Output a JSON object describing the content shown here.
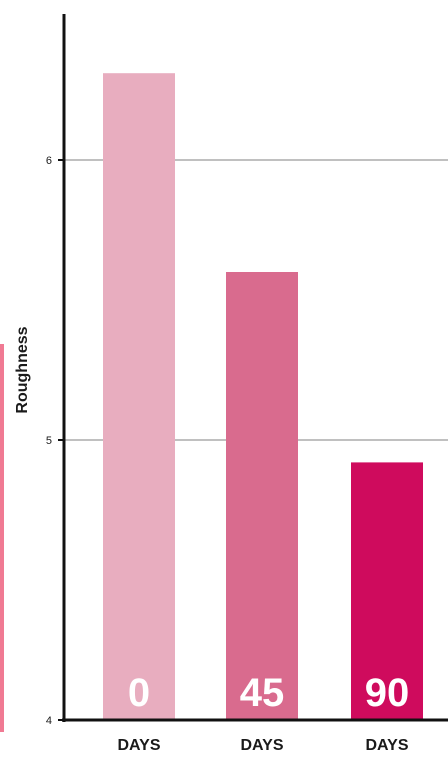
{
  "chart_data": {
    "type": "bar",
    "categories": [
      "0",
      "45",
      "90"
    ],
    "category_units": [
      "DAYS",
      "DAYS",
      "DAYS"
    ],
    "values": [
      6.31,
      5.6,
      4.92
    ],
    "bar_colors": [
      "#e8adbf",
      "#d96b8e",
      "#cf0b5d"
    ],
    "ylabel": "Roughness",
    "xlabel": "",
    "title": "",
    "ylim": [
      4,
      6.5
    ],
    "yticks": [
      4,
      5,
      6
    ],
    "ytick_labels": [
      "4",
      "5",
      "6"
    ],
    "grid": true,
    "gridlines_at": [
      5,
      6
    ],
    "grid_color": "#c0c0c0",
    "axis_color": "#111111",
    "legend": "none"
  },
  "colors": {
    "accent_strip": "#f07a93",
    "bar_label_text": "#ffffff",
    "axis_text": "#1a1a1a"
  }
}
